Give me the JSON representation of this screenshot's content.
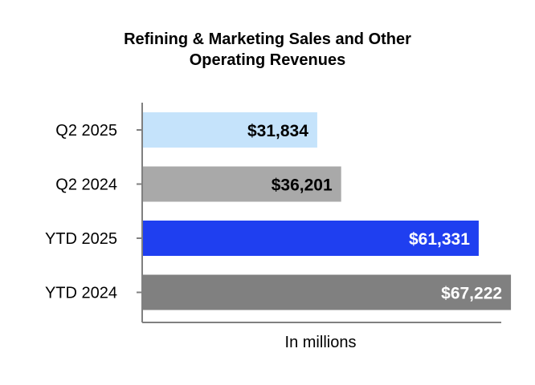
{
  "chart_data": {
    "type": "bar",
    "orientation": "horizontal",
    "title": [
      "Refining & Marketing Sales and Other",
      "Operating Revenues"
    ],
    "xlabel": "In millions",
    "ylabel": "",
    "categories": [
      "Q2 2025",
      "Q2 2024",
      "YTD 2025",
      "YTD 2024"
    ],
    "values": [
      31834,
      36201,
      61331,
      67222
    ],
    "data_labels": [
      "$31,834",
      "$36,201",
      "$61,331",
      "$67,222"
    ],
    "bar_colors": [
      "#c5e3fb",
      "#a9a9a9",
      "#1f3ff0",
      "#808080"
    ],
    "label_colors": [
      "#000000",
      "#000000",
      "#ffffff",
      "#ffffff"
    ],
    "xlim": [
      0,
      70000
    ],
    "grid": false,
    "legend": "none"
  }
}
